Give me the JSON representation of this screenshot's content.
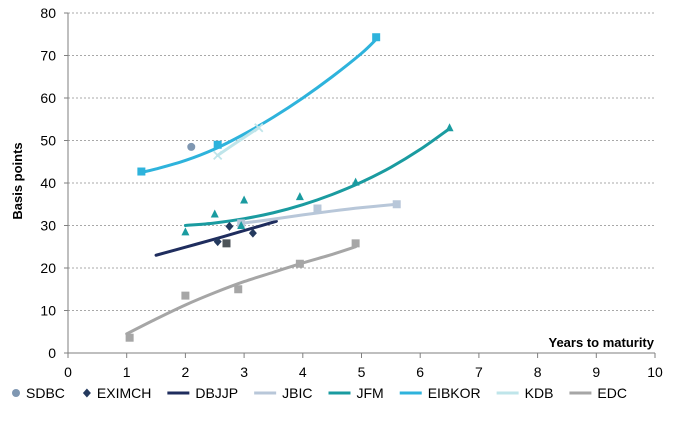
{
  "chart_data": {
    "type": "scatter",
    "ylabel": "Basis points",
    "xlabel": "Years to maturity",
    "xlim": [
      0,
      10
    ],
    "ylim": [
      0,
      80
    ],
    "x_ticks": [
      0,
      1,
      2,
      3,
      4,
      5,
      6,
      7,
      8,
      9,
      10
    ],
    "y_ticks": [
      0,
      10,
      20,
      30,
      40,
      50,
      60,
      70,
      80
    ],
    "grid": "horizontal dashed",
    "legend_position": "bottom",
    "series": [
      {
        "name": "SDBC",
        "color": "#7f97b2",
        "marker": "circle",
        "points": [
          [
            2.1,
            48.5
          ]
        ]
      },
      {
        "name": "EXIMCH",
        "color": "#243a5e",
        "marker": "diamond",
        "points": [
          [
            2.55,
            26.2
          ],
          [
            2.75,
            29.8
          ],
          [
            3.15,
            28.2
          ]
        ]
      },
      {
        "name": "DBJJP",
        "color": "#1f2d5e",
        "marker": "none",
        "points": [
          [
            2.7,
            25.8
          ]
        ],
        "trend": [
          [
            1.5,
            23.0
          ],
          [
            2.0,
            24.9
          ],
          [
            2.5,
            26.8
          ],
          [
            3.0,
            28.8
          ],
          [
            3.55,
            31.0
          ]
        ]
      },
      {
        "name": "JBIC",
        "color": "#b8c7d9",
        "marker": "square",
        "points": [
          [
            2.95,
            30.5
          ],
          [
            4.25,
            34.0
          ],
          [
            5.6,
            35.0
          ]
        ],
        "trend": [
          [
            2.95,
            30.5
          ],
          [
            3.5,
            31.5
          ],
          [
            4.0,
            32.5
          ],
          [
            4.5,
            33.4
          ],
          [
            5.0,
            34.2
          ],
          [
            5.6,
            35.0
          ]
        ]
      },
      {
        "name": "JFM",
        "color": "#1a9ba0",
        "marker": "triangle",
        "points": [
          [
            2.0,
            28.5
          ],
          [
            2.5,
            32.7
          ],
          [
            2.95,
            30.0
          ],
          [
            3.0,
            36.0
          ],
          [
            3.95,
            36.8
          ],
          [
            4.9,
            40.2
          ],
          [
            6.5,
            53.0
          ]
        ],
        "trend": [
          [
            2.0,
            30.0
          ],
          [
            2.5,
            30.6
          ],
          [
            3.0,
            31.6
          ],
          [
            3.5,
            33.0
          ],
          [
            4.0,
            34.9
          ],
          [
            4.5,
            37.3
          ],
          [
            5.0,
            40.2
          ],
          [
            5.5,
            43.7
          ],
          [
            6.0,
            47.9
          ],
          [
            6.5,
            52.8
          ]
        ]
      },
      {
        "name": "EIBKOR",
        "color": "#2eb3dc",
        "marker": "square",
        "points": [
          [
            1.25,
            42.7
          ],
          [
            2.55,
            49.0
          ],
          [
            5.25,
            74.3
          ]
        ],
        "trend": [
          [
            1.25,
            42.5
          ],
          [
            1.5,
            43.3
          ],
          [
            2.0,
            45.3
          ],
          [
            2.5,
            48.0
          ],
          [
            3.0,
            51.5
          ],
          [
            3.5,
            55.5
          ],
          [
            4.0,
            60.0
          ],
          [
            4.5,
            65.0
          ],
          [
            5.0,
            70.5
          ],
          [
            5.25,
            73.8
          ]
        ]
      },
      {
        "name": "KDB",
        "color": "#bfe5ea",
        "marker": "cross",
        "points": [
          [
            2.55,
            46.5
          ],
          [
            3.25,
            53.0
          ]
        ],
        "trend": [
          [
            2.55,
            46.5
          ],
          [
            2.9,
            49.8
          ],
          [
            3.25,
            53.0
          ]
        ]
      },
      {
        "name": "EDC",
        "color": "#a6a6a6",
        "marker": "square",
        "points": [
          [
            1.05,
            3.6
          ],
          [
            2.0,
            13.5
          ],
          [
            2.9,
            15.0
          ],
          [
            3.95,
            21.0
          ],
          [
            4.9,
            25.8
          ]
        ],
        "trend": [
          [
            1.0,
            4.5
          ],
          [
            1.5,
            8.0
          ],
          [
            2.0,
            11.3
          ],
          [
            2.5,
            14.2
          ],
          [
            3.0,
            16.8
          ],
          [
            3.5,
            19.0
          ],
          [
            4.0,
            21.2
          ],
          [
            4.5,
            23.2
          ],
          [
            4.9,
            25.0
          ]
        ]
      }
    ]
  }
}
